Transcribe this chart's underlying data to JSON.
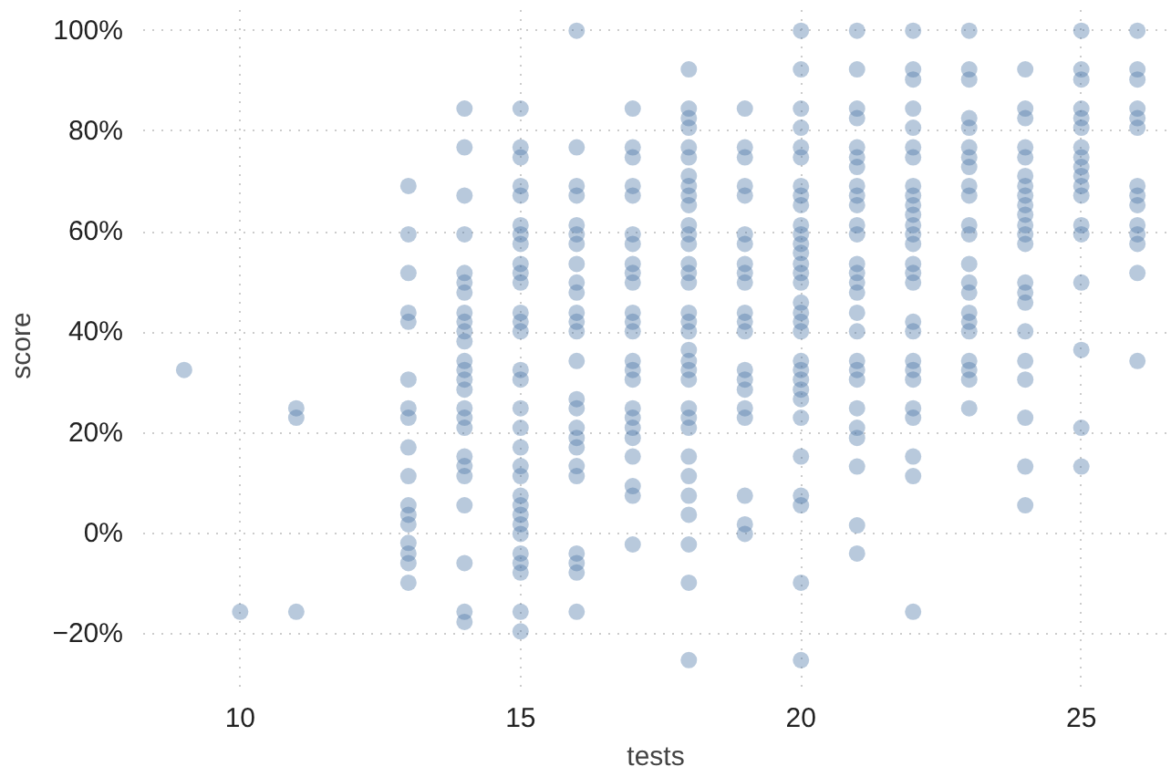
{
  "chart_data": {
    "type": "scatter",
    "xlabel": "tests",
    "ylabel": "score",
    "color": "#4e79a7",
    "marker": "circle",
    "grid": true,
    "xlim": [
      8.27,
      26.55
    ],
    "xticks": [
      10,
      15,
      20,
      25
    ],
    "ylim": [
      -30.5,
      105.2
    ],
    "yticks": [
      {
        "value": -20,
        "label": "−20%"
      },
      {
        "value": 0,
        "label": "0%"
      },
      {
        "value": 20,
        "label": "20%"
      },
      {
        "value": 40,
        "label": "40%"
      },
      {
        "value": 60,
        "label": "60%"
      },
      {
        "value": 80,
        "label": "80%"
      },
      {
        "value": 100,
        "label": "100%"
      }
    ],
    "x": [
      9,
      10,
      11,
      11,
      11,
      13,
      13,
      13,
      13,
      13,
      13,
      13,
      13,
      13,
      13,
      13,
      13,
      13,
      13,
      13,
      13,
      13,
      14,
      14,
      14,
      14,
      14,
      14,
      14,
      14,
      14,
      14,
      14,
      14,
      14,
      14,
      14,
      14,
      14,
      14,
      14,
      14,
      14,
      14,
      14,
      14,
      14,
      15,
      15,
      15,
      15,
      15,
      15,
      15,
      15,
      15,
      15,
      15,
      15,
      15,
      15,
      15,
      15,
      15,
      15,
      15,
      15,
      15,
      15,
      15,
      15,
      15,
      15,
      15,
      15,
      15,
      15,
      15,
      16,
      16,
      16,
      16,
      16,
      16,
      16,
      16,
      16,
      16,
      16,
      16,
      16,
      16,
      16,
      16,
      16,
      16,
      16,
      16,
      16,
      16,
      16,
      16,
      16,
      17,
      17,
      17,
      17,
      17,
      17,
      17,
      17,
      17,
      17,
      17,
      17,
      17,
      17,
      17,
      17,
      17,
      17,
      17,
      17,
      17,
      17,
      17,
      17,
      18,
      18,
      18,
      18,
      18,
      18,
      18,
      18,
      18,
      18,
      18,
      18,
      18,
      18,
      18,
      18,
      18,
      18,
      18,
      18,
      18,
      18,
      18,
      18,
      18,
      18,
      18,
      18,
      18,
      18,
      18,
      18,
      18,
      19,
      19,
      19,
      19,
      19,
      19,
      19,
      19,
      19,
      19,
      19,
      19,
      19,
      19,
      19,
      19,
      19,
      19,
      19,
      19,
      19,
      20,
      20,
      20,
      20,
      20,
      20,
      20,
      20,
      20,
      20,
      20,
      20,
      20,
      20,
      20,
      20,
      20,
      20,
      20,
      20,
      20,
      20,
      20,
      20,
      20,
      20,
      20,
      20,
      20,
      20,
      20,
      21,
      21,
      21,
      21,
      21,
      21,
      21,
      21,
      21,
      21,
      21,
      21,
      21,
      21,
      21,
      21,
      21,
      21,
      21,
      21,
      21,
      21,
      21,
      21,
      21,
      21,
      21,
      22,
      22,
      22,
      22,
      22,
      22,
      22,
      22,
      22,
      22,
      22,
      22,
      22,
      22,
      22,
      22,
      22,
      22,
      22,
      22,
      22,
      22,
      22,
      22,
      22,
      22,
      22,
      23,
      23,
      23,
      23,
      23,
      23,
      23,
      23,
      23,
      23,
      23,
      23,
      23,
      23,
      23,
      23,
      23,
      23,
      23,
      23,
      23,
      23,
      24,
      24,
      24,
      24,
      24,
      24,
      24,
      24,
      24,
      24,
      24,
      24,
      24,
      24,
      24,
      24,
      24,
      24,
      24,
      24,
      24,
      24,
      25,
      25,
      25,
      25,
      25,
      25,
      25,
      25,
      25,
      25,
      25,
      25,
      25,
      25,
      25,
      25,
      25,
      25,
      26,
      26,
      26,
      26,
      26,
      26,
      26,
      26,
      26,
      26,
      26,
      26,
      26,
      26
    ],
    "values": [
      32.5,
      -15.6,
      24.9,
      23.0,
      -15.6,
      69.1,
      59.5,
      51.8,
      43.9,
      42.1,
      30.6,
      24.9,
      23.0,
      17.1,
      11.4,
      5.6,
      3.7,
      1.8,
      -1.9,
      -4.0,
      -5.9,
      -9.8,
      84.5,
      76.8,
      67.2,
      59.5,
      51.8,
      49.9,
      47.9,
      43.9,
      42.1,
      40.2,
      38.2,
      34.3,
      32.5,
      30.6,
      28.6,
      24.9,
      23.0,
      21.0,
      15.3,
      13.4,
      11.4,
      5.6,
      -5.9,
      -15.6,
      -17.6,
      84.5,
      76.8,
      74.8,
      69.1,
      67.2,
      61.3,
      59.5,
      57.6,
      53.6,
      51.8,
      49.9,
      43.9,
      42.1,
      40.2,
      32.5,
      30.6,
      24.9,
      21.0,
      17.1,
      13.4,
      11.4,
      7.5,
      5.6,
      3.7,
      1.8,
      -0.1,
      -4.0,
      -5.9,
      -7.8,
      -15.6,
      -19.5,
      100,
      76.8,
      69.1,
      67.2,
      61.3,
      59.5,
      57.6,
      53.6,
      49.9,
      47.9,
      43.9,
      42.1,
      40.2,
      34.3,
      26.7,
      24.9,
      21.0,
      19.0,
      17.1,
      13.4,
      11.4,
      -4.0,
      -5.9,
      -7.8,
      -15.6,
      84.5,
      76.8,
      74.8,
      69.1,
      67.2,
      59.5,
      57.6,
      53.6,
      51.8,
      49.9,
      43.9,
      42.1,
      40.2,
      34.3,
      32.5,
      30.6,
      24.9,
      23.0,
      21.0,
      19.0,
      15.3,
      9.4,
      7.5,
      -2.2,
      92.3,
      84.5,
      82.6,
      80.7,
      76.8,
      74.8,
      71.1,
      69.1,
      67.2,
      65.3,
      61.3,
      59.5,
      57.6,
      53.6,
      51.8,
      49.9,
      43.9,
      42.1,
      40.2,
      36.5,
      34.3,
      32.5,
      30.6,
      24.9,
      23.0,
      21.0,
      15.3,
      11.4,
      7.5,
      3.7,
      -2.2,
      -9.8,
      -25.2,
      84.5,
      76.8,
      74.8,
      69.1,
      67.2,
      59.5,
      57.6,
      53.6,
      51.8,
      49.9,
      43.9,
      42.1,
      40.2,
      32.5,
      30.6,
      28.6,
      24.9,
      23.0,
      7.5,
      1.8,
      -0.1,
      100,
      92.3,
      84.5,
      80.7,
      76.8,
      74.8,
      69.1,
      67.2,
      65.3,
      61.3,
      59.5,
      57.6,
      55.8,
      53.6,
      51.8,
      49.9,
      45.9,
      43.9,
      42.1,
      40.2,
      34.3,
      32.5,
      30.6,
      28.6,
      26.7,
      23.0,
      15.3,
      7.5,
      5.6,
      -9.8,
      -25.2,
      100,
      92.3,
      84.5,
      82.6,
      76.8,
      74.8,
      72.9,
      69.1,
      67.2,
      65.3,
      61.3,
      59.5,
      53.6,
      51.8,
      49.9,
      47.9,
      43.9,
      40.2,
      34.3,
      32.5,
      30.6,
      24.9,
      21.0,
      19.0,
      13.3,
      1.6,
      -4.0,
      100,
      92.3,
      90.3,
      84.5,
      80.7,
      76.8,
      74.8,
      69.1,
      67.2,
      65.3,
      63.4,
      61.3,
      59.5,
      57.6,
      53.6,
      51.8,
      49.9,
      42.1,
      40.2,
      34.3,
      32.5,
      30.6,
      24.9,
      23.0,
      15.3,
      11.4,
      -15.6,
      100,
      92.3,
      90.3,
      82.6,
      80.7,
      76.8,
      74.8,
      72.9,
      69.1,
      67.2,
      61.3,
      59.5,
      53.6,
      49.9,
      47.9,
      43.9,
      42.1,
      40.2,
      34.3,
      32.5,
      30.6,
      24.9,
      92.3,
      84.5,
      82.6,
      76.8,
      74.8,
      71.1,
      69.1,
      67.2,
      65.3,
      63.4,
      61.3,
      59.5,
      57.6,
      49.9,
      47.9,
      45.9,
      40.2,
      34.3,
      30.6,
      23.0,
      13.3,
      5.6,
      100,
      92.3,
      90.3,
      84.5,
      82.6,
      80.7,
      76.8,
      74.8,
      72.9,
      71.1,
      69.1,
      67.2,
      61.3,
      59.5,
      49.9,
      36.5,
      21.0,
      13.3,
      100,
      92.3,
      90.3,
      84.5,
      82.6,
      80.7,
      69.1,
      67.2,
      65.3,
      61.3,
      59.5,
      57.6,
      51.8,
      34.3
    ]
  }
}
